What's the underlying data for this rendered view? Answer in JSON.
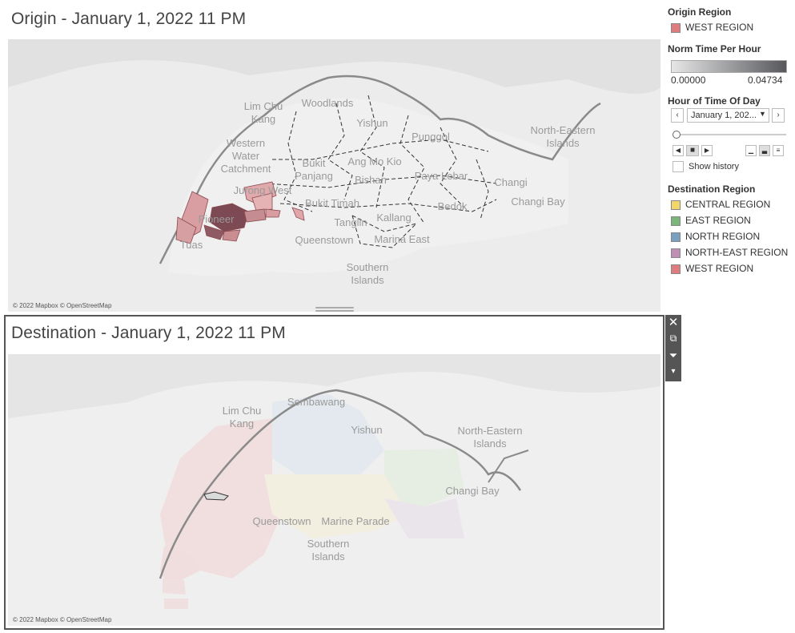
{
  "origin": {
    "title": "Origin - January 1, 2022 11 PM",
    "attribution": "© 2022 Mapbox © OpenStreetMap",
    "labels": [
      "Lim Chu\nKang",
      "Woodlands",
      "Yishun",
      "Punggol",
      "North-Eastern\nIslands",
      "Western\nWater\nCatchment",
      "Bukit\nPanjang",
      "Ang Mo Kio",
      "Bishan",
      "Paya Lebar",
      "Changi",
      "Changi Bay",
      "Jurong West",
      "Bukit Timah",
      "Bedok",
      "Tanglin",
      "Kallang",
      "Pioneer",
      "Queenstown",
      "Marina East",
      "Tuas",
      "Southern\nIslands"
    ]
  },
  "destination": {
    "title": "Destination - January 1, 2022 11 PM",
    "attribution": "© 2022 Mapbox © OpenStreetMap",
    "labels": [
      "Lim Chu\nKang",
      "Sembawang",
      "Yishun",
      "North-Eastern\nIslands",
      "Changi Bay",
      "Queenstown",
      "Marine Parade",
      "Southern\nIslands"
    ]
  },
  "toolbar": {
    "close_icon": "close-icon",
    "popout_icon": "popout-icon",
    "filter_icon": "filter-icon",
    "more_icon": "more-icon"
  },
  "sidebar": {
    "origin_region": {
      "header": "Origin Region",
      "items": [
        {
          "label": "WEST REGION",
          "color": "#e07b7e"
        }
      ]
    },
    "norm_time": {
      "header": "Norm Time Per Hour",
      "min": "0.00000",
      "max": "0.04734",
      "color_low": "#e6e6e6",
      "color_high": "#57585c"
    },
    "hour_filter": {
      "header": "Hour of Time Of Day",
      "selected": "January 1, 202...",
      "show_history_label": "Show history"
    },
    "destination_region": {
      "header": "Destination Region",
      "items": [
        {
          "label": "CENTRAL REGION",
          "color": "#f1d76a"
        },
        {
          "label": "EAST REGION",
          "color": "#7cb77a"
        },
        {
          "label": "NORTH REGION",
          "color": "#7a9fc0"
        },
        {
          "label": "NORTH-EAST REGION",
          "color": "#c08fb5"
        },
        {
          "label": "WEST REGION",
          "color": "#e07b7e"
        }
      ]
    }
  }
}
